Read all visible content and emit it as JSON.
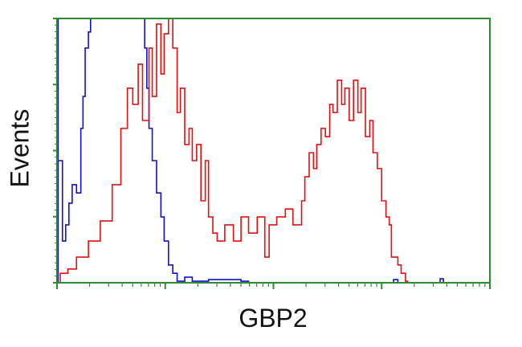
{
  "chart_data": {
    "type": "line",
    "title": "",
    "xlabel": "GBP2",
    "ylabel": "Events",
    "x_scale": "log",
    "x_units": "decades",
    "xlim": [
      0,
      4
    ],
    "ylim": [
      0,
      100
    ],
    "grid": false,
    "colors": {
      "frame": "#2e8b2e",
      "series_blue": "#1010d0",
      "series_red": "#e01010"
    },
    "series": [
      {
        "color": "#1010d0",
        "x": [
          0,
          0.01,
          0.01,
          0.05,
          0.08,
          0.11,
          0.14,
          0.18,
          0.22,
          0.24,
          0.26,
          0.29,
          0.31,
          0.77,
          0.81,
          0.83,
          0.85,
          0.88,
          0.92,
          0.96,
          0.99,
          1.03,
          1.07,
          1.11,
          1.18,
          1.25,
          1.4,
          1.7,
          1.77,
          3.11,
          3.15,
          3.54,
          3.57
        ],
        "y": [
          0,
          100,
          46.2,
          15.8,
          21.9,
          30.1,
          37.1,
          34.0,
          58.4,
          70.5,
          88.8,
          94.9,
          100,
          100,
          88.8,
          73.6,
          58.4,
          46.2,
          34.0,
          24.9,
          15.8,
          6.7,
          3.6,
          0.6,
          2.1,
          0.6,
          1.2,
          0.6,
          0,
          1.2,
          0,
          1.5,
          0
        ]
      },
      {
        "color": "#e01010",
        "x": [
          0.01,
          0.03,
          0.1,
          0.18,
          0.29,
          0.4,
          0.51,
          0.59,
          0.65,
          0.7,
          0.75,
          0.79,
          0.85,
          0.88,
          0.92,
          0.96,
          0.99,
          1.03,
          1.07,
          1.11,
          1.14,
          1.18,
          1.22,
          1.25,
          1.29,
          1.33,
          1.37,
          1.4,
          1.44,
          1.48,
          1.55,
          1.63,
          1.7,
          1.77,
          1.85,
          1.92,
          1.96,
          2.03,
          2.11,
          2.18,
          2.26,
          2.29,
          2.33,
          2.37,
          2.4,
          2.44,
          2.48,
          2.52,
          2.55,
          2.59,
          2.63,
          2.66,
          2.7,
          2.74,
          2.78,
          2.81,
          2.85,
          2.89,
          2.92,
          2.96,
          3.0,
          3.04,
          3.07,
          3.09,
          3.15,
          3.18,
          3.22,
          3.24
        ],
        "y": [
          0,
          3.6,
          5.2,
          9.7,
          15.8,
          23.4,
          37.1,
          58.4,
          73.6,
          67.5,
          82.7,
          61.4,
          88.8,
          70.5,
          97.9,
          79.0,
          94.2,
          100,
          88.8,
          64.4,
          73.6,
          52.3,
          58.4,
          46.2,
          52.3,
          31.0,
          46.2,
          24.9,
          18.8,
          15.8,
          21.9,
          15.8,
          24.9,
          18.8,
          24.9,
          9.7,
          21.9,
          24.9,
          27.9,
          21.9,
          31.0,
          40.1,
          49.2,
          43.2,
          52.3,
          58.4,
          55.3,
          67.5,
          64.4,
          76.6,
          67.5,
          73.6,
          61.4,
          76.6,
          64.4,
          73.6,
          55.3,
          61.4,
          49.2,
          43.2,
          31.0,
          24.9,
          21.9,
          9.7,
          6.7,
          3.6,
          0.6,
          0
        ]
      }
    ]
  }
}
